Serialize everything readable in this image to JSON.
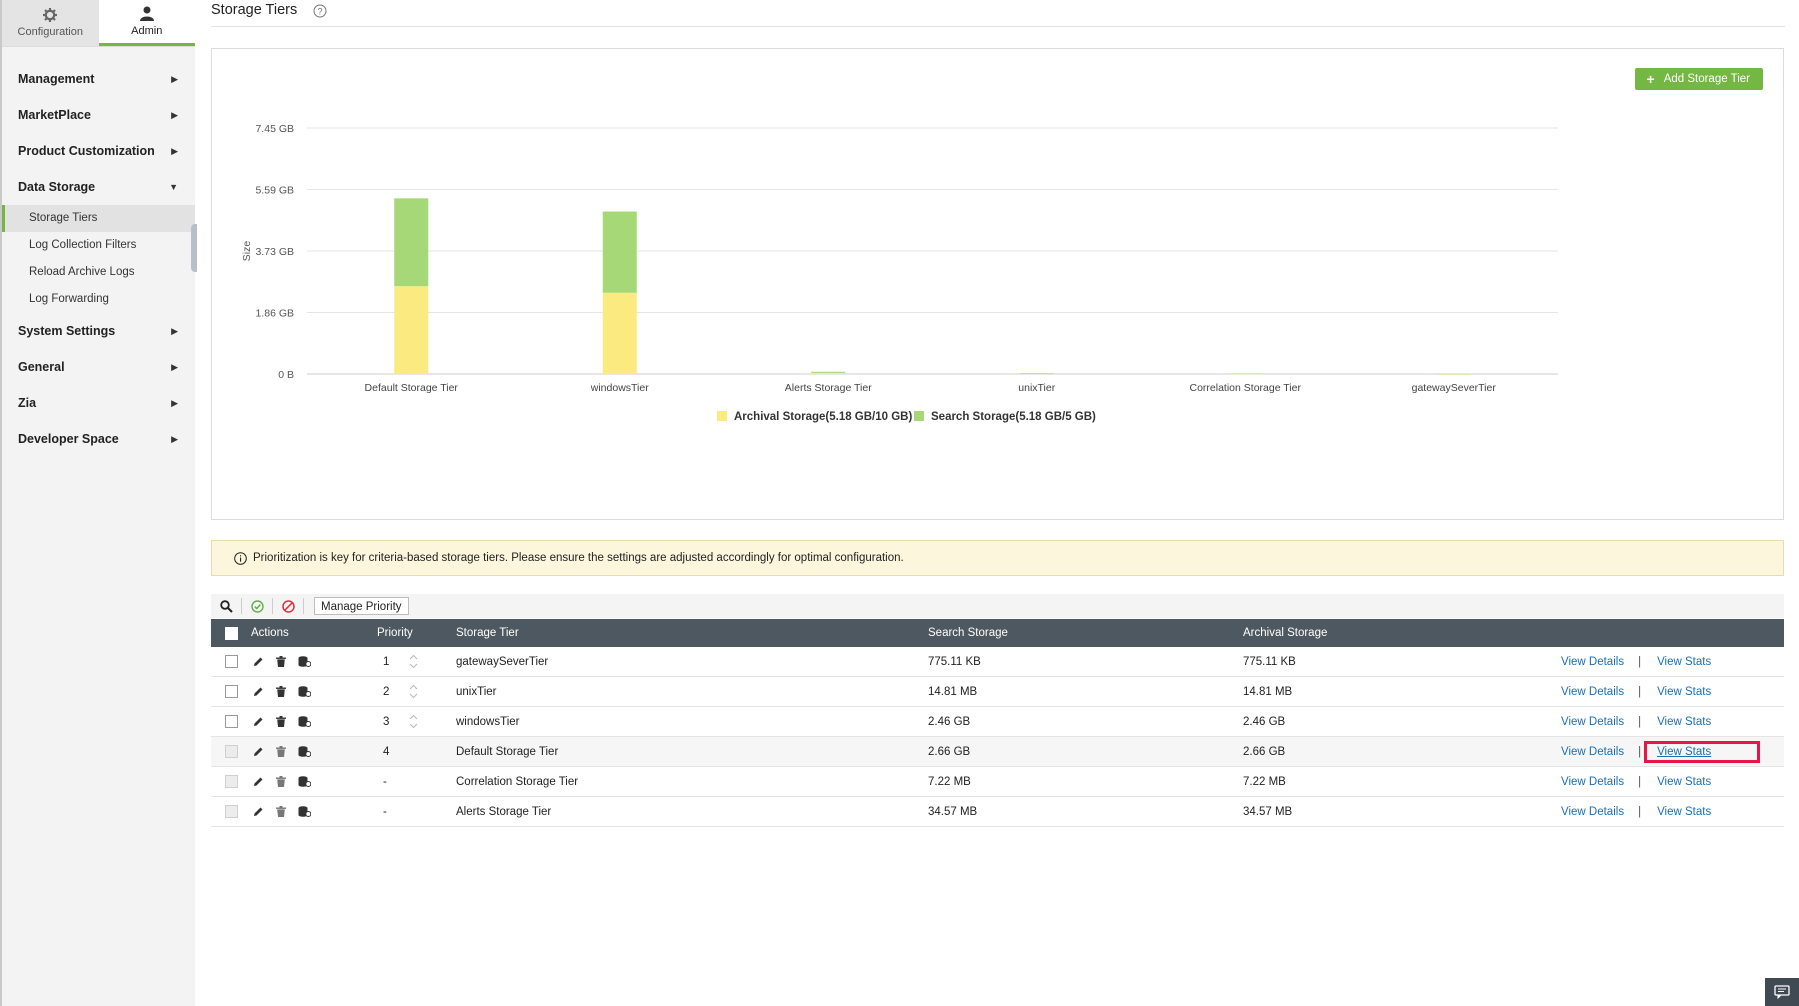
{
  "sidebar": {
    "tabs": [
      {
        "label": "Configuration",
        "icon": "gear-icon"
      },
      {
        "label": "Admin",
        "icon": "user-icon"
      }
    ],
    "sections": {
      "management": "Management",
      "marketplace": "MarketPlace",
      "product_customization": "Product Customization",
      "data_storage": "Data Storage",
      "system_settings": "System Settings",
      "general": "General",
      "zia": "Zia",
      "developer_space": "Developer Space"
    },
    "data_storage_items": [
      "Storage Tiers",
      "Log Collection Filters",
      "Reload Archive Logs",
      "Log Forwarding"
    ]
  },
  "page": {
    "title": "Storage Tiers",
    "add_button": "Add Storage Tier",
    "info_text": "Prioritization is key for criteria-based storage tiers. Please ensure the settings are adjusted accordingly for optimal configuration.",
    "manage_priority": "Manage Priority"
  },
  "chart_data": {
    "type": "bar",
    "stacked": true,
    "categories": [
      "Default Storage Tier",
      "windowsTier",
      "Alerts Storage Tier",
      "unixTier",
      "Correlation Storage Tier",
      "gatewaySeverTier"
    ],
    "y_ticks": [
      "0 B",
      "1.86 GB",
      "3.73 GB",
      "5.59 GB",
      "7.45 GB"
    ],
    "ylabel": "Size",
    "ylim": [
      0,
      7.45
    ],
    "y_unit": "GB",
    "series": [
      {
        "name": "Archival Storage(5.18 GB/10 GB)",
        "color": "#fbea7f",
        "values": [
          2.66,
          2.46,
          0.0346,
          0.0145,
          0.0071,
          0.0008
        ]
      },
      {
        "name": "Search Storage(5.18 GB/5 GB)",
        "color": "#a6d878",
        "values": [
          2.66,
          2.46,
          0.0346,
          0.0145,
          0.0071,
          0.0008
        ]
      }
    ],
    "legend_position": "bottom",
    "grid": true
  },
  "table": {
    "headers": {
      "actions": "Actions",
      "priority": "Priority",
      "tier": "Storage Tier",
      "search": "Search Storage",
      "archival": "Archival Storage"
    },
    "links": {
      "details": "View Details",
      "stats": "View Stats",
      "sep": "|"
    },
    "rows": [
      {
        "priority": "1",
        "tier": "gatewaySeverTier",
        "search": "775.11 KB",
        "archival": "775.11 KB"
      },
      {
        "priority": "2",
        "tier": "unixTier",
        "search": "14.81 MB",
        "archival": "14.81 MB"
      },
      {
        "priority": "3",
        "tier": "windowsTier",
        "search": "2.46 GB",
        "archival": "2.46 GB"
      },
      {
        "priority": "4",
        "tier": "Default Storage Tier",
        "search": "2.66 GB",
        "archival": "2.66 GB"
      },
      {
        "priority": "-",
        "tier": "Correlation Storage Tier",
        "search": "7.22 MB",
        "archival": "7.22 MB"
      },
      {
        "priority": "-",
        "tier": "Alerts Storage Tier",
        "search": "34.57 MB",
        "archival": "34.57 MB"
      }
    ]
  }
}
